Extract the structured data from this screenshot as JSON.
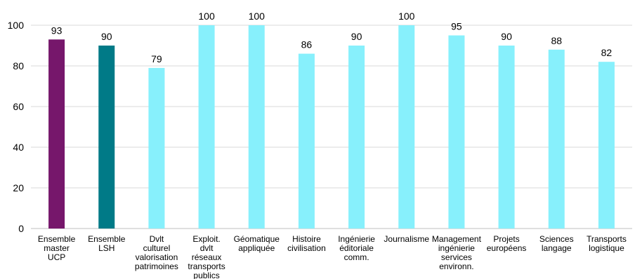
{
  "chart_data": {
    "type": "bar",
    "title": "",
    "xlabel": "",
    "ylabel": "",
    "ylim": [
      0,
      100
    ],
    "yticks": [
      0,
      20,
      40,
      60,
      80,
      100
    ],
    "grid": true,
    "categories": [
      [
        "Ensemble",
        "master",
        "UCP"
      ],
      [
        "Ensemble",
        "LSH"
      ],
      [
        "Dvlt",
        "culturel",
        "valorisation",
        "patrimoines"
      ],
      [
        "Exploit.",
        "dvlt",
        "réseaux",
        "transports",
        "publics"
      ],
      [
        "Géomatique",
        "appliquée"
      ],
      [
        "Histoire",
        "civilisation"
      ],
      [
        "Ingénierie",
        "éditoriale",
        "comm."
      ],
      [
        "Journalisme"
      ],
      [
        "Management",
        "ingénierie",
        "services",
        "environn."
      ],
      [
        "Projets",
        "européens"
      ],
      [
        "Sciences",
        "langage"
      ],
      [
        "Transports",
        "logistique"
      ]
    ],
    "values": [
      93,
      90,
      79,
      100,
      100,
      86,
      90,
      100,
      95,
      90,
      88,
      82
    ],
    "colors": [
      "#76176b",
      "#007a87",
      "#87f0fc",
      "#87f0fc",
      "#87f0fc",
      "#87f0fc",
      "#87f0fc",
      "#87f0fc",
      "#87f0fc",
      "#87f0fc",
      "#87f0fc",
      "#87f0fc"
    ]
  }
}
